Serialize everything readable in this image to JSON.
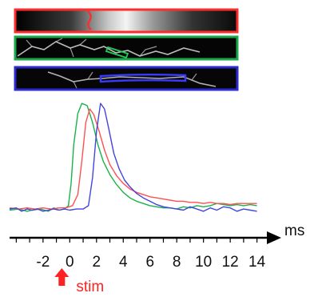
{
  "chart_data": {
    "type": "line",
    "title": "",
    "xlabel": "",
    "ylabel": "",
    "x_unit": "ms",
    "xlim": [
      -4.5,
      14.5
    ],
    "ylim": [
      -0.08,
      1.0
    ],
    "grid": false,
    "legend": "none",
    "x_ticks": [
      -2,
      0,
      2,
      4,
      6,
      8,
      10,
      12,
      14
    ],
    "x_tick_labels": [
      "-2",
      "0",
      "2",
      "4",
      "6",
      "8",
      "10",
      "12",
      "14"
    ],
    "series": [
      {
        "color": "#19b34a",
        "points": [
          [
            -4.5,
            0.01
          ],
          [
            -3.8,
            0.02
          ],
          [
            -3.2,
            0.0
          ],
          [
            -2.8,
            0.01
          ],
          [
            -2.2,
            0.02
          ],
          [
            -1.6,
            0.0
          ],
          [
            -1.2,
            0.03
          ],
          [
            -0.8,
            0.01
          ],
          [
            -0.4,
            0.02
          ],
          [
            -0.1,
            0.05
          ],
          [
            0.1,
            0.25
          ],
          [
            0.3,
            0.6
          ],
          [
            0.6,
            0.88
          ],
          [
            0.9,
            0.97
          ],
          [
            1.3,
            0.95
          ],
          [
            1.7,
            0.8
          ],
          [
            2.1,
            0.6
          ],
          [
            2.5,
            0.45
          ],
          [
            3.0,
            0.33
          ],
          [
            3.5,
            0.24
          ],
          [
            4.0,
            0.17
          ],
          [
            4.5,
            0.12
          ],
          [
            5.0,
            0.09
          ],
          [
            5.5,
            0.07
          ],
          [
            6.0,
            0.05
          ],
          [
            6.5,
            0.04
          ],
          [
            7.0,
            0.03
          ],
          [
            7.5,
            0.03
          ],
          [
            8.0,
            0.02
          ],
          [
            8.5,
            0.04
          ],
          [
            9.0,
            0.03
          ],
          [
            9.5,
            0.05
          ],
          [
            10.0,
            0.04
          ],
          [
            10.5,
            0.05
          ],
          [
            11.0,
            0.07
          ],
          [
            11.5,
            0.06
          ],
          [
            12.0,
            0.05
          ],
          [
            12.5,
            0.06
          ],
          [
            13.0,
            0.05
          ],
          [
            13.5,
            0.06
          ],
          [
            14.0,
            0.05
          ]
        ]
      },
      {
        "color": "#ff5050",
        "points": [
          [
            -4.5,
            0.03
          ],
          [
            -3.8,
            0.02
          ],
          [
            -3.2,
            0.03
          ],
          [
            -2.6,
            0.02
          ],
          [
            -2.0,
            0.03
          ],
          [
            -1.4,
            0.02
          ],
          [
            -0.8,
            0.03
          ],
          [
            -0.3,
            0.03
          ],
          [
            0.2,
            0.05
          ],
          [
            0.6,
            0.15
          ],
          [
            0.9,
            0.45
          ],
          [
            1.2,
            0.8
          ],
          [
            1.5,
            0.92
          ],
          [
            1.8,
            0.87
          ],
          [
            2.2,
            0.72
          ],
          [
            2.6,
            0.55
          ],
          [
            3.0,
            0.42
          ],
          [
            3.5,
            0.32
          ],
          [
            4.0,
            0.25
          ],
          [
            4.5,
            0.2
          ],
          [
            5.0,
            0.17
          ],
          [
            5.5,
            0.15
          ],
          [
            6.0,
            0.13
          ],
          [
            6.5,
            0.12
          ],
          [
            7.0,
            0.11
          ],
          [
            7.5,
            0.1
          ],
          [
            8.0,
            0.09
          ],
          [
            8.5,
            0.09
          ],
          [
            9.0,
            0.08
          ],
          [
            9.5,
            0.08
          ],
          [
            10.0,
            0.07
          ],
          [
            10.5,
            0.08
          ],
          [
            11.0,
            0.07
          ],
          [
            11.5,
            0.07
          ],
          [
            12.0,
            0.06
          ],
          [
            12.5,
            0.07
          ],
          [
            13.0,
            0.07
          ],
          [
            13.5,
            0.07
          ],
          [
            14.0,
            0.07
          ]
        ]
      },
      {
        "color": "#4444dd",
        "points": [
          [
            -4.5,
            0.02
          ],
          [
            -4.0,
            0.03
          ],
          [
            -3.6,
            0.0
          ],
          [
            -3.2,
            0.02
          ],
          [
            -2.8,
            0.01
          ],
          [
            -2.4,
            0.02
          ],
          [
            -2.0,
            0.0
          ],
          [
            -1.6,
            0.01
          ],
          [
            -1.2,
            0.02
          ],
          [
            -0.8,
            0.01
          ],
          [
            -0.4,
            0.02
          ],
          [
            0.0,
            0.01
          ],
          [
            0.5,
            0.02
          ],
          [
            1.0,
            0.02
          ],
          [
            1.4,
            0.05
          ],
          [
            1.7,
            0.3
          ],
          [
            2.0,
            0.72
          ],
          [
            2.3,
            0.97
          ],
          [
            2.6,
            0.92
          ],
          [
            2.9,
            0.75
          ],
          [
            3.3,
            0.52
          ],
          [
            3.7,
            0.38
          ],
          [
            4.1,
            0.28
          ],
          [
            4.5,
            0.22
          ],
          [
            5.0,
            0.16
          ],
          [
            5.5,
            0.12
          ],
          [
            6.0,
            0.09
          ],
          [
            6.5,
            0.06
          ],
          [
            7.0,
            0.04
          ],
          [
            7.5,
            0.03
          ],
          [
            8.0,
            0.02
          ],
          [
            8.5,
            0.01
          ],
          [
            9.0,
            0.04
          ],
          [
            9.5,
            0.02
          ],
          [
            10.0,
            0.0
          ],
          [
            10.5,
            0.03
          ],
          [
            11.0,
            0.01
          ],
          [
            11.5,
            0.04
          ],
          [
            12.0,
            0.03
          ],
          [
            12.5,
            0.0
          ],
          [
            13.0,
            0.02
          ],
          [
            13.5,
            0.01
          ],
          [
            14.0,
            0.0
          ]
        ]
      }
    ],
    "annotations": [
      {
        "text": "stim",
        "x": 0,
        "color": "#ff2222"
      }
    ]
  },
  "panels": [
    {
      "frame_color": "#ff2b2b",
      "roi_color": "#ff2b2b"
    },
    {
      "frame_color": "#1aa84b",
      "roi_color": "#22cc55"
    },
    {
      "frame_color": "#2b2bd0",
      "roi_color": "#3a3aff"
    }
  ]
}
